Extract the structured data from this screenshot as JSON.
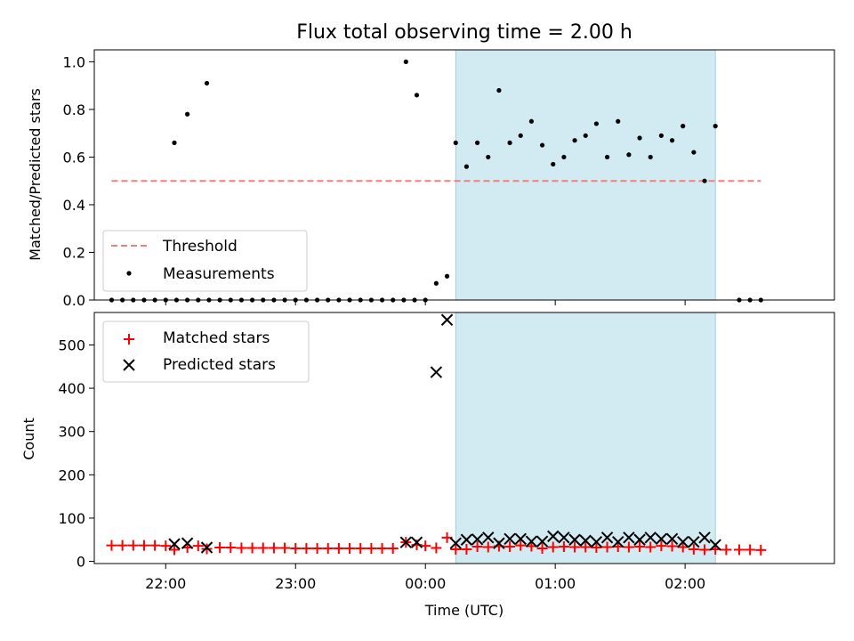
{
  "chart_data": {
    "type": "scatter",
    "title": "Flux total observing time = 2.00 h",
    "xlabel": "Time (UTC)",
    "x_ticks": [
      "22:00",
      "23:00",
      "00:00",
      "01:00",
      "02:00"
    ],
    "x_range": [
      "21:27",
      "03:09"
    ],
    "highlight_span": [
      "00:14",
      "02:14"
    ],
    "colors": {
      "threshold": "#f08080",
      "measurements": "#000000",
      "matched": "#ff0000",
      "predicted": "#000000",
      "span": "#add8e6"
    },
    "panels": [
      {
        "ylabel": "Matched/Predicted stars",
        "ylim": [
          0,
          1.05
        ],
        "y_ticks": [
          "0.0",
          "0.2",
          "0.4",
          "0.6",
          "0.8",
          "1.0"
        ],
        "legend": {
          "placement": "lower-left",
          "threshold_label": "Threshold",
          "measurements_label": "Measurements"
        },
        "threshold": {
          "y": 0.5,
          "x_start": "21:35",
          "x_end": "02:35"
        },
        "measurements": [
          {
            "x": "21:35",
            "y": 0
          },
          {
            "x": "21:40",
            "y": 0
          },
          {
            "x": "21:45",
            "y": 0
          },
          {
            "x": "21:50",
            "y": 0
          },
          {
            "x": "21:55",
            "y": 0
          },
          {
            "x": "22:00",
            "y": 0
          },
          {
            "x": "22:05",
            "y": 0
          },
          {
            "x": "22:10",
            "y": 0
          },
          {
            "x": "22:15",
            "y": 0
          },
          {
            "x": "22:20",
            "y": 0
          },
          {
            "x": "22:25",
            "y": 0
          },
          {
            "x": "22:30",
            "y": 0
          },
          {
            "x": "22:35",
            "y": 0
          },
          {
            "x": "22:40",
            "y": 0
          },
          {
            "x": "22:45",
            "y": 0
          },
          {
            "x": "22:50",
            "y": 0
          },
          {
            "x": "22:55",
            "y": 0
          },
          {
            "x": "23:00",
            "y": 0
          },
          {
            "x": "23:05",
            "y": 0
          },
          {
            "x": "23:10",
            "y": 0
          },
          {
            "x": "23:15",
            "y": 0
          },
          {
            "x": "23:20",
            "y": 0
          },
          {
            "x": "23:25",
            "y": 0
          },
          {
            "x": "23:30",
            "y": 0
          },
          {
            "x": "23:35",
            "y": 0
          },
          {
            "x": "23:40",
            "y": 0
          },
          {
            "x": "23:45",
            "y": 0
          },
          {
            "x": "23:50",
            "y": 0
          },
          {
            "x": "23:55",
            "y": 0
          },
          {
            "x": "00:00",
            "y": 0
          },
          {
            "x": "02:25",
            "y": 0
          },
          {
            "x": "02:30",
            "y": 0
          },
          {
            "x": "02:35",
            "y": 0
          },
          {
            "x": "22:04",
            "y": 0.66
          },
          {
            "x": "22:10",
            "y": 0.78
          },
          {
            "x": "22:19",
            "y": 0.91
          },
          {
            "x": "23:51",
            "y": 1.0
          },
          {
            "x": "23:56",
            "y": 0.86
          },
          {
            "x": "00:05",
            "y": 0.07
          },
          {
            "x": "00:10",
            "y": 0.1
          },
          {
            "x": "00:14",
            "y": 0.66
          },
          {
            "x": "00:19",
            "y": 0.56
          },
          {
            "x": "00:24",
            "y": 0.66
          },
          {
            "x": "00:29",
            "y": 0.6
          },
          {
            "x": "00:34",
            "y": 0.88
          },
          {
            "x": "00:39",
            "y": 0.66
          },
          {
            "x": "00:44",
            "y": 0.69
          },
          {
            "x": "00:49",
            "y": 0.75
          },
          {
            "x": "00:54",
            "y": 0.65
          },
          {
            "x": "00:59",
            "y": 0.57
          },
          {
            "x": "01:04",
            "y": 0.6
          },
          {
            "x": "01:09",
            "y": 0.67
          },
          {
            "x": "01:14",
            "y": 0.69
          },
          {
            "x": "01:19",
            "y": 0.74
          },
          {
            "x": "01:24",
            "y": 0.6
          },
          {
            "x": "01:29",
            "y": 0.75
          },
          {
            "x": "01:34",
            "y": 0.61
          },
          {
            "x": "01:39",
            "y": 0.68
          },
          {
            "x": "01:44",
            "y": 0.6
          },
          {
            "x": "01:49",
            "y": 0.69
          },
          {
            "x": "01:54",
            "y": 0.67
          },
          {
            "x": "01:59",
            "y": 0.73
          },
          {
            "x": "02:04",
            "y": 0.62
          },
          {
            "x": "02:09",
            "y": 0.5
          },
          {
            "x": "02:14",
            "y": 0.73
          }
        ]
      },
      {
        "ylabel": "Count",
        "ylim": [
          -5,
          575
        ],
        "y_ticks": [
          "0",
          "100",
          "200",
          "300",
          "400",
          "500"
        ],
        "legend": {
          "placement": "upper-left",
          "matched_label": "Matched stars",
          "predicted_label": "Predicted stars"
        },
        "matched": [
          {
            "x": "21:35",
            "y": 37
          },
          {
            "x": "21:40",
            "y": 37
          },
          {
            "x": "21:45",
            "y": 37
          },
          {
            "x": "21:50",
            "y": 37
          },
          {
            "x": "21:55",
            "y": 37
          },
          {
            "x": "22:00",
            "y": 36
          },
          {
            "x": "22:04",
            "y": 27
          },
          {
            "x": "22:10",
            "y": 32
          },
          {
            "x": "22:15",
            "y": 36
          },
          {
            "x": "22:19",
            "y": 29
          },
          {
            "x": "22:25",
            "y": 32
          },
          {
            "x": "22:30",
            "y": 32
          },
          {
            "x": "22:35",
            "y": 31
          },
          {
            "x": "22:40",
            "y": 31
          },
          {
            "x": "22:45",
            "y": 31
          },
          {
            "x": "22:50",
            "y": 31
          },
          {
            "x": "22:55",
            "y": 31
          },
          {
            "x": "23:00",
            "y": 30
          },
          {
            "x": "23:05",
            "y": 30
          },
          {
            "x": "23:10",
            "y": 30
          },
          {
            "x": "23:15",
            "y": 30
          },
          {
            "x": "23:20",
            "y": 30
          },
          {
            "x": "23:25",
            "y": 30
          },
          {
            "x": "23:30",
            "y": 30
          },
          {
            "x": "23:35",
            "y": 30
          },
          {
            "x": "23:40",
            "y": 30
          },
          {
            "x": "23:45",
            "y": 30
          },
          {
            "x": "23:51",
            "y": 44
          },
          {
            "x": "23:56",
            "y": 38
          },
          {
            "x": "00:00",
            "y": 36
          },
          {
            "x": "00:05",
            "y": 31
          },
          {
            "x": "00:10",
            "y": 55
          },
          {
            "x": "00:14",
            "y": 28
          },
          {
            "x": "00:19",
            "y": 28
          },
          {
            "x": "00:24",
            "y": 34
          },
          {
            "x": "00:29",
            "y": 33
          },
          {
            "x": "00:34",
            "y": 35
          },
          {
            "x": "00:39",
            "y": 34
          },
          {
            "x": "00:44",
            "y": 37
          },
          {
            "x": "00:49",
            "y": 35
          },
          {
            "x": "00:54",
            "y": 30
          },
          {
            "x": "00:59",
            "y": 33
          },
          {
            "x": "01:04",
            "y": 34
          },
          {
            "x": "01:09",
            "y": 33
          },
          {
            "x": "01:14",
            "y": 33
          },
          {
            "x": "01:19",
            "y": 32
          },
          {
            "x": "01:24",
            "y": 33
          },
          {
            "x": "01:29",
            "y": 34
          },
          {
            "x": "01:34",
            "y": 33
          },
          {
            "x": "01:39",
            "y": 34
          },
          {
            "x": "01:44",
            "y": 33
          },
          {
            "x": "01:49",
            "y": 36
          },
          {
            "x": "01:54",
            "y": 35
          },
          {
            "x": "01:59",
            "y": 33
          },
          {
            "x": "02:04",
            "y": 28
          },
          {
            "x": "02:09",
            "y": 27
          },
          {
            "x": "02:14",
            "y": 28
          },
          {
            "x": "02:19",
            "y": 27
          },
          {
            "x": "02:25",
            "y": 27
          },
          {
            "x": "02:30",
            "y": 27
          },
          {
            "x": "02:35",
            "y": 26
          }
        ],
        "predicted": [
          {
            "x": "22:04",
            "y": 40
          },
          {
            "x": "22:10",
            "y": 42
          },
          {
            "x": "22:19",
            "y": 32
          },
          {
            "x": "23:51",
            "y": 44
          },
          {
            "x": "23:56",
            "y": 44
          },
          {
            "x": "00:05",
            "y": 437
          },
          {
            "x": "00:10",
            "y": 558
          },
          {
            "x": "00:14",
            "y": 42
          },
          {
            "x": "00:19",
            "y": 50
          },
          {
            "x": "00:24",
            "y": 51
          },
          {
            "x": "00:29",
            "y": 55
          },
          {
            "x": "00:34",
            "y": 42
          },
          {
            "x": "00:39",
            "y": 52
          },
          {
            "x": "00:44",
            "y": 52
          },
          {
            "x": "00:49",
            "y": 46
          },
          {
            "x": "00:54",
            "y": 46
          },
          {
            "x": "00:59",
            "y": 58
          },
          {
            "x": "01:04",
            "y": 55
          },
          {
            "x": "01:09",
            "y": 50
          },
          {
            "x": "01:14",
            "y": 48
          },
          {
            "x": "01:19",
            "y": 45
          },
          {
            "x": "01:24",
            "y": 55
          },
          {
            "x": "01:29",
            "y": 45
          },
          {
            "x": "01:34",
            "y": 55
          },
          {
            "x": "01:39",
            "y": 50
          },
          {
            "x": "01:44",
            "y": 55
          },
          {
            "x": "01:49",
            "y": 52
          },
          {
            "x": "01:54",
            "y": 52
          },
          {
            "x": "01:59",
            "y": 45
          },
          {
            "x": "02:04",
            "y": 45
          },
          {
            "x": "02:09",
            "y": 55
          },
          {
            "x": "02:14",
            "y": 38
          }
        ]
      }
    ]
  }
}
